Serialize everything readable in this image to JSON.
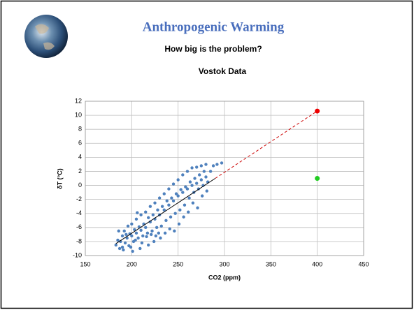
{
  "slide": {
    "title": "Anthropogenic Warming",
    "subtitle": "How big is the problem?"
  },
  "chart_data": {
    "type": "scatter",
    "title": "Vostok Data",
    "x_label": "CO2 (ppm)",
    "y_label": "δT (°C)",
    "xlim": [
      150,
      450
    ],
    "xticks": [
      150,
      200,
      250,
      300,
      350,
      400,
      450
    ],
    "ylim": [
      -10,
      12
    ],
    "yticks": [
      -10,
      -8,
      -6,
      -4,
      -2,
      0,
      2,
      4,
      6,
      8,
      10,
      12
    ],
    "grid": true,
    "series": [
      {
        "color": "#4f81bd",
        "mode": "points",
        "x": [
          183,
          185,
          187,
          188,
          190,
          190,
          192,
          193,
          195,
          196,
          197,
          198,
          200,
          200,
          202,
          203,
          205,
          205,
          207,
          208,
          210,
          210,
          212,
          213,
          215,
          215,
          217,
          218,
          220,
          220,
          222,
          223,
          225,
          225,
          227,
          228,
          230,
          230,
          232,
          233,
          235,
          235,
          237,
          238,
          240,
          240,
          242,
          243,
          245,
          245,
          247,
          248,
          250,
          250,
          252,
          253,
          255,
          255,
          257,
          258,
          260,
          260,
          262,
          263,
          265,
          265,
          267,
          268,
          270,
          270,
          272,
          273,
          275,
          275,
          277,
          278,
          280,
          280,
          282,
          285,
          288,
          292,
          297,
          186,
          191,
          194,
          199,
          204,
          206,
          211,
          216,
          221,
          226,
          231,
          236,
          241,
          246,
          251,
          256,
          261,
          266,
          271,
          276,
          281,
          224,
          229,
          218,
          209,
          201
        ],
        "values": [
          -8.5,
          -7.8,
          -9,
          -8,
          -7.2,
          -8.8,
          -6.5,
          -8.2,
          -7.5,
          -5.8,
          -8.6,
          -6.9,
          -7.2,
          -5.5,
          -8,
          -6.3,
          -6.8,
          -4.8,
          -7.5,
          -5.9,
          -6.4,
          -4.2,
          -7.2,
          -5.5,
          -6,
          -3.8,
          -6.8,
          -4.6,
          -5.2,
          -3,
          -6.5,
          -4.2,
          -4.8,
          -2.5,
          -6,
          -3.5,
          -4.2,
          -1.8,
          -5.8,
          -3,
          -3.5,
          -1.2,
          -5,
          -2.2,
          -2.8,
          -0.5,
          -4.5,
          -1.8,
          -2.2,
          0.2,
          -4,
          -1.2,
          -1.5,
          0.8,
          -3.5,
          -0.6,
          -1,
          1.5,
          -2.8,
          -0.2,
          -0.5,
          2,
          -1.8,
          0.5,
          0,
          2.5,
          -1,
          1,
          0.3,
          2.6,
          -0.5,
          1.5,
          0.8,
          2.8,
          0,
          2,
          1.2,
          3,
          0.5,
          2,
          2.8,
          3,
          3.2,
          -6.5,
          -9.2,
          -7,
          -8.8,
          -7.8,
          -3.9,
          -8.2,
          -7.3,
          -7,
          -7.2,
          -7.5,
          -6.8,
          -6.2,
          -6.5,
          -5.5,
          -4.5,
          -3.8,
          -2.5,
          -3.2,
          -1.5,
          -0.8,
          -8,
          -6.8,
          -8.5,
          -9,
          -9.4
        ]
      },
      {
        "color": "#000000",
        "mode": "line",
        "dashed": false,
        "x": [
          183,
          290
        ],
        "values": [
          -8.3,
          1.0
        ]
      },
      {
        "color": "#cc0000",
        "mode": "line",
        "dashed": true,
        "x": [
          290,
          400
        ],
        "values": [
          1.0,
          10.6
        ]
      },
      {
        "color": "#ee0000",
        "mode": "points",
        "size": 3.5,
        "x": [
          400
        ],
        "values": [
          10.6
        ]
      },
      {
        "color": "#22cc22",
        "mode": "points",
        "size": 3.5,
        "x": [
          400
        ],
        "values": [
          1
        ]
      }
    ]
  }
}
